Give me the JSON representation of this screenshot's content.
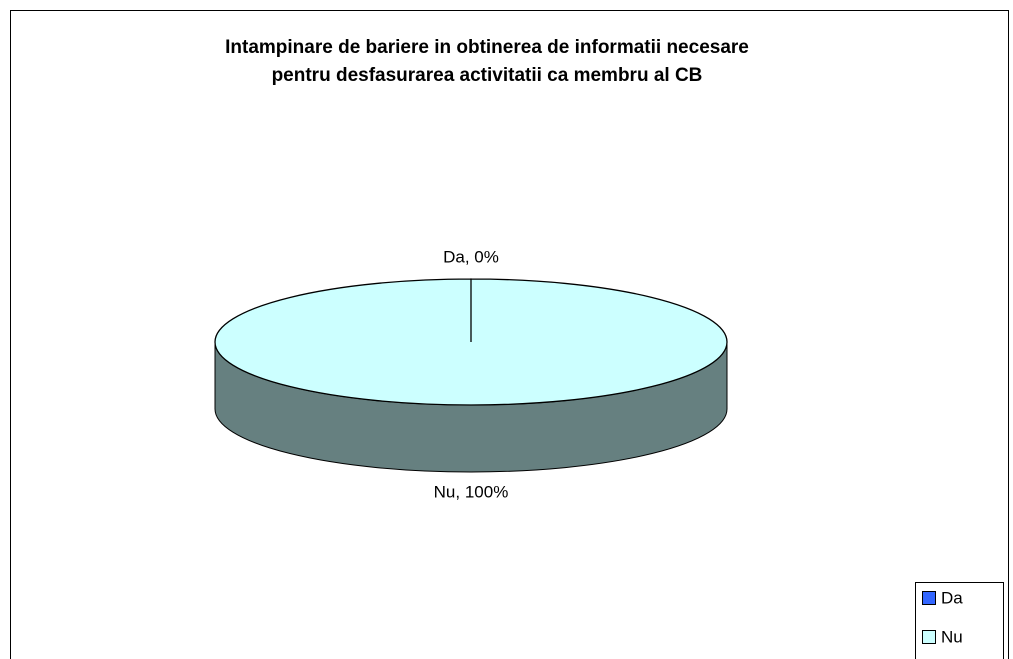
{
  "chart_data": {
    "type": "pie3d",
    "title": [
      "Intampinare de bariere in obtinerea de informatii necesare",
      "pentru desfasurarea activitatii ca membru al CB"
    ],
    "categories": [
      "Da",
      "Nu"
    ],
    "values": [
      0,
      100
    ],
    "value_labels": [
      "Da, 0%",
      "Nu, 100%"
    ],
    "colors": [
      "#3366ff",
      "#ccffff"
    ],
    "legend": "bottom-right"
  }
}
